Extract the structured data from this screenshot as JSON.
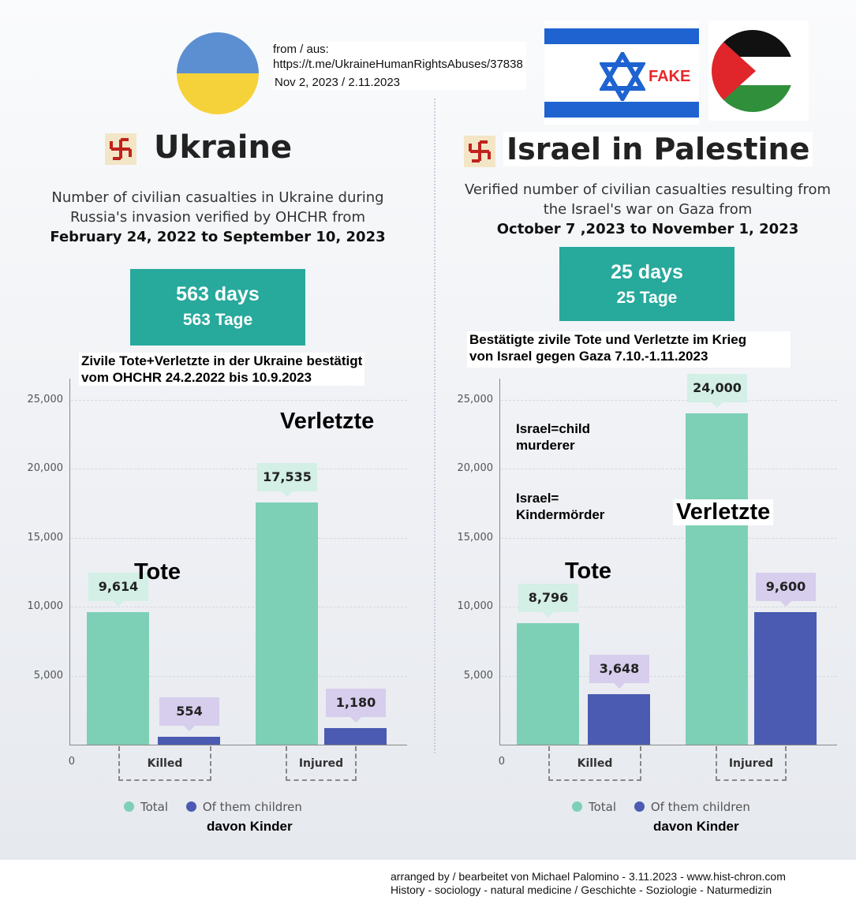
{
  "source": {
    "line1": "from / aus:",
    "line2": "https://t.me/UkraineHumanRightsAbuses/37838",
    "date": "Nov 2, 2023 / 2.11.2023"
  },
  "flag_label": "FAKE",
  "colors": {
    "total": "#7dd0b6",
    "children": "#4a5bb1",
    "total_bubble": "#d3efe6",
    "children_bubble": "#d7cdec",
    "daybox": "#27a99c"
  },
  "left": {
    "title": "Ukraine",
    "subtitle": [
      "Number of civilian casualties in Ukraine during",
      "Russia's invasion verified by OHCHR from"
    ],
    "period": "February 24, 2022 to September 10, 2023",
    "days": "563 days",
    "tage": "563 Tage",
    "caption": [
      "Zivile Tote+Verletzte in der Ukraine bestätigt",
      "vom OHCHR 24.2.2022 bis 10.9.2023"
    ],
    "label_killed": "Tote",
    "label_injured": "Verletzte",
    "legend_de": "davon Kinder"
  },
  "right": {
    "title": "Israel in Palestine",
    "subtitle": [
      "Verified number of civilian casualties resulting from",
      "the Israel's war on Gaza from"
    ],
    "period": "October 7 ,2023 to November 1, 2023",
    "days": "25 days",
    "tage": "25 Tage",
    "caption": [
      "Bestätigte zivile Tote und Verletzte im Krieg",
      "von Israel gegen Gaza 7.10.-1.11.2023"
    ],
    "label_killed": "Tote",
    "label_injured": "Verletzte",
    "note1": [
      "Israel=child",
      "murderer"
    ],
    "note2": [
      "Israel=",
      "Kindermörder"
    ],
    "legend_de": "davon Kinder"
  },
  "chart_data": [
    {
      "type": "bar",
      "title": "Ukraine",
      "categories": [
        "Killed",
        "Injured"
      ],
      "series": [
        {
          "name": "Total",
          "values": [
            9614,
            17535
          ]
        },
        {
          "name": "Of them children",
          "values": [
            554,
            1180
          ]
        }
      ],
      "value_labels": [
        [
          "9,614",
          "17,535"
        ],
        [
          "554",
          "1,180"
        ]
      ],
      "yticks": [
        "0",
        "5,000",
        "10,000",
        "15,000",
        "20,000",
        "25,000"
      ],
      "ylim": [
        0,
        25000
      ],
      "grid": true,
      "legend": "bottom"
    },
    {
      "type": "bar",
      "title": "Israel in Palestine",
      "categories": [
        "Killed",
        "Injured"
      ],
      "series": [
        {
          "name": "Total",
          "values": [
            8796,
            24000
          ]
        },
        {
          "name": "Of them children",
          "values": [
            3648,
            9600
          ]
        }
      ],
      "value_labels": [
        [
          "8,796",
          "24,000"
        ],
        [
          "3,648",
          "9,600"
        ]
      ],
      "yticks": [
        "0",
        "5,000",
        "10,000",
        "15,000",
        "20,000",
        "25,000"
      ],
      "ylim": [
        0,
        25000
      ],
      "grid": true,
      "legend": "bottom"
    }
  ],
  "footer": {
    "line1": "arranged by / bearbeitet von Michael Palomino - 3.11.2023 - www.hist-chron.com",
    "line2": "History - sociology - natural medicine / Geschichte - Soziologie - Naturmedizin"
  }
}
